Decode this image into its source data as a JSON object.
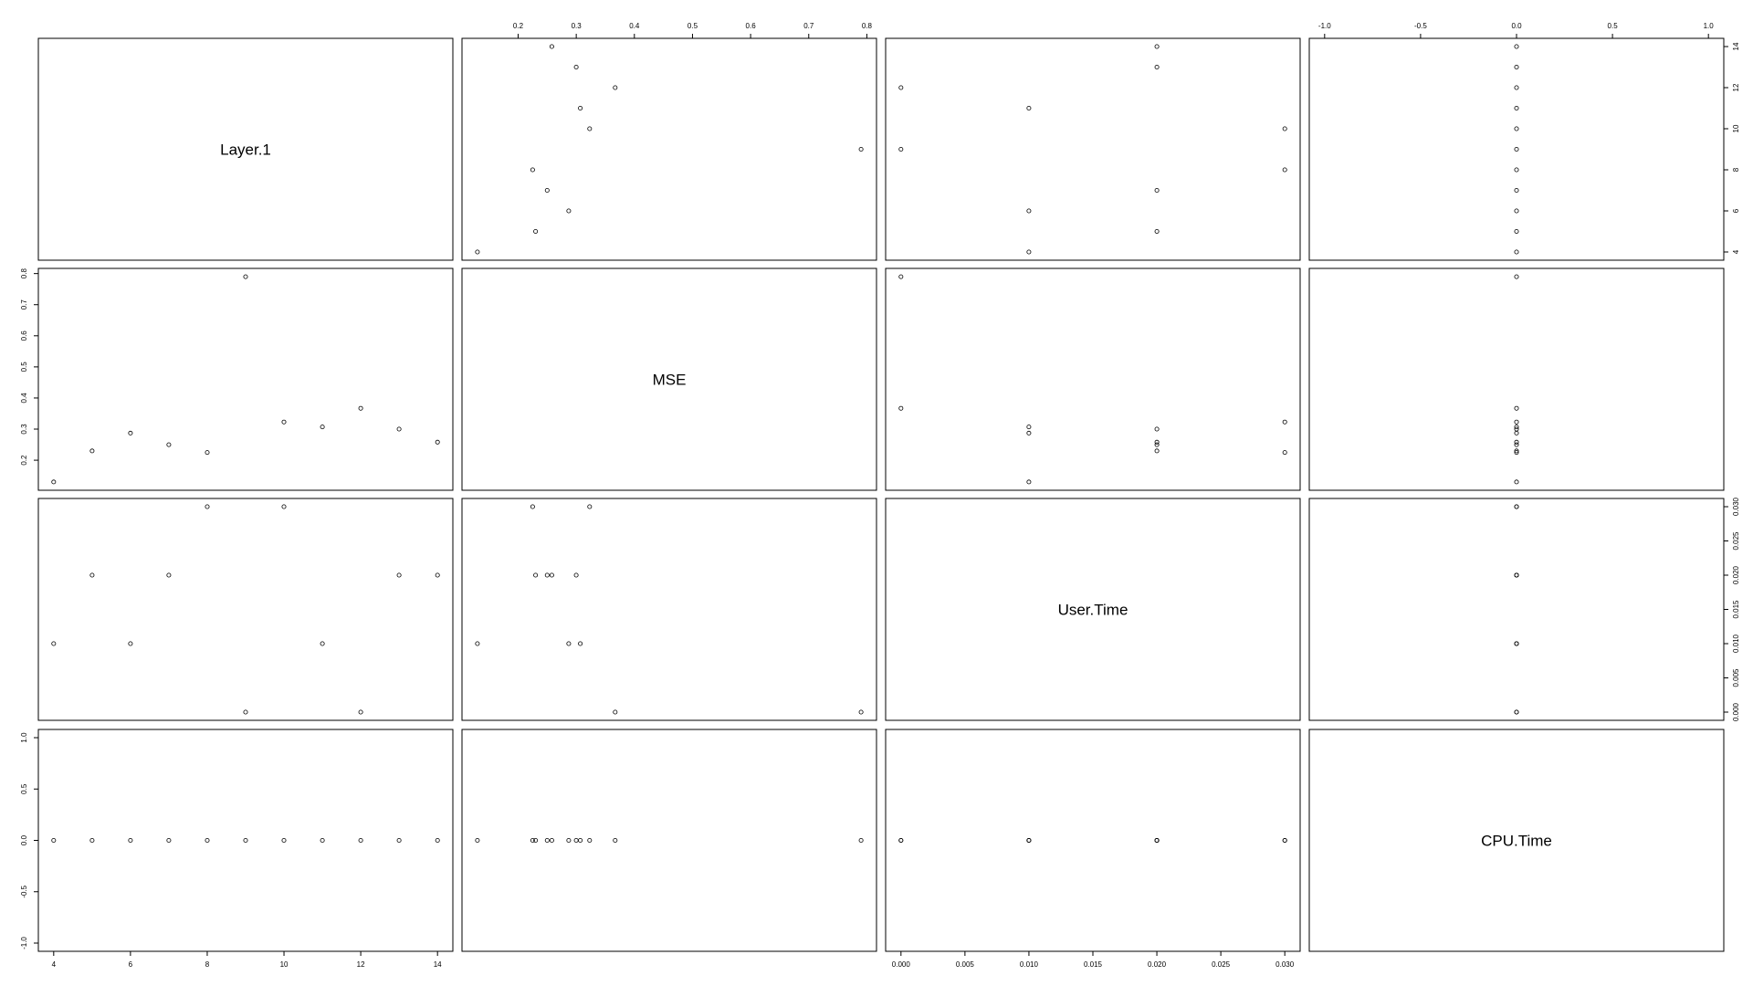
{
  "chart_data": {
    "type": "scatter",
    "variables": [
      "Layer.1",
      "MSE",
      "User.Time",
      "CPU.Time"
    ],
    "rows": [
      {
        "Layer.1": 4,
        "MSE": 0.13,
        "User.Time": 0.01,
        "CPU.Time": 0
      },
      {
        "Layer.1": 5,
        "MSE": 0.23,
        "User.Time": 0.02,
        "CPU.Time": 0
      },
      {
        "Layer.1": 6,
        "MSE": 0.287,
        "User.Time": 0.01,
        "CPU.Time": 0
      },
      {
        "Layer.1": 7,
        "MSE": 0.25,
        "User.Time": 0.02,
        "CPU.Time": 0
      },
      {
        "Layer.1": 8,
        "MSE": 0.225,
        "User.Time": 0.03,
        "CPU.Time": 0
      },
      {
        "Layer.1": 9,
        "MSE": 0.79,
        "User.Time": 0.0,
        "CPU.Time": 0
      },
      {
        "Layer.1": 10,
        "MSE": 0.323,
        "User.Time": 0.03,
        "CPU.Time": 0
      },
      {
        "Layer.1": 11,
        "MSE": 0.307,
        "User.Time": 0.01,
        "CPU.Time": 0
      },
      {
        "Layer.1": 12,
        "MSE": 0.367,
        "User.Time": 0.0,
        "CPU.Time": 0
      },
      {
        "Layer.1": 13,
        "MSE": 0.3,
        "User.Time": 0.02,
        "CPU.Time": 0
      },
      {
        "Layer.1": 14,
        "MSE": 0.258,
        "User.Time": 0.02,
        "CPU.Time": 0
      }
    ],
    "axes": {
      "Layer.1": {
        "range": [
          3.6,
          14.4
        ],
        "ticks": [
          "4",
          "6",
          "8",
          "10",
          "12",
          "14"
        ]
      },
      "MSE": {
        "range": [
          0.1034,
          0.8166
        ],
        "ticks": [
          "0.2",
          "0.3",
          "0.4",
          "0.5",
          "0.6",
          "0.7",
          "0.8"
        ]
      },
      "User.Time": {
        "range": [
          -0.0012,
          0.0312
        ],
        "ticks": [
          "0.000",
          "0.005",
          "0.010",
          "0.015",
          "0.020",
          "0.025",
          "0.030"
        ]
      },
      "CPU.Time": {
        "range": [
          -1.08,
          1.08
        ],
        "ticks": [
          "-1.0",
          "-0.5",
          "0.0",
          "0.5",
          "1.0"
        ]
      }
    },
    "grid": false
  }
}
